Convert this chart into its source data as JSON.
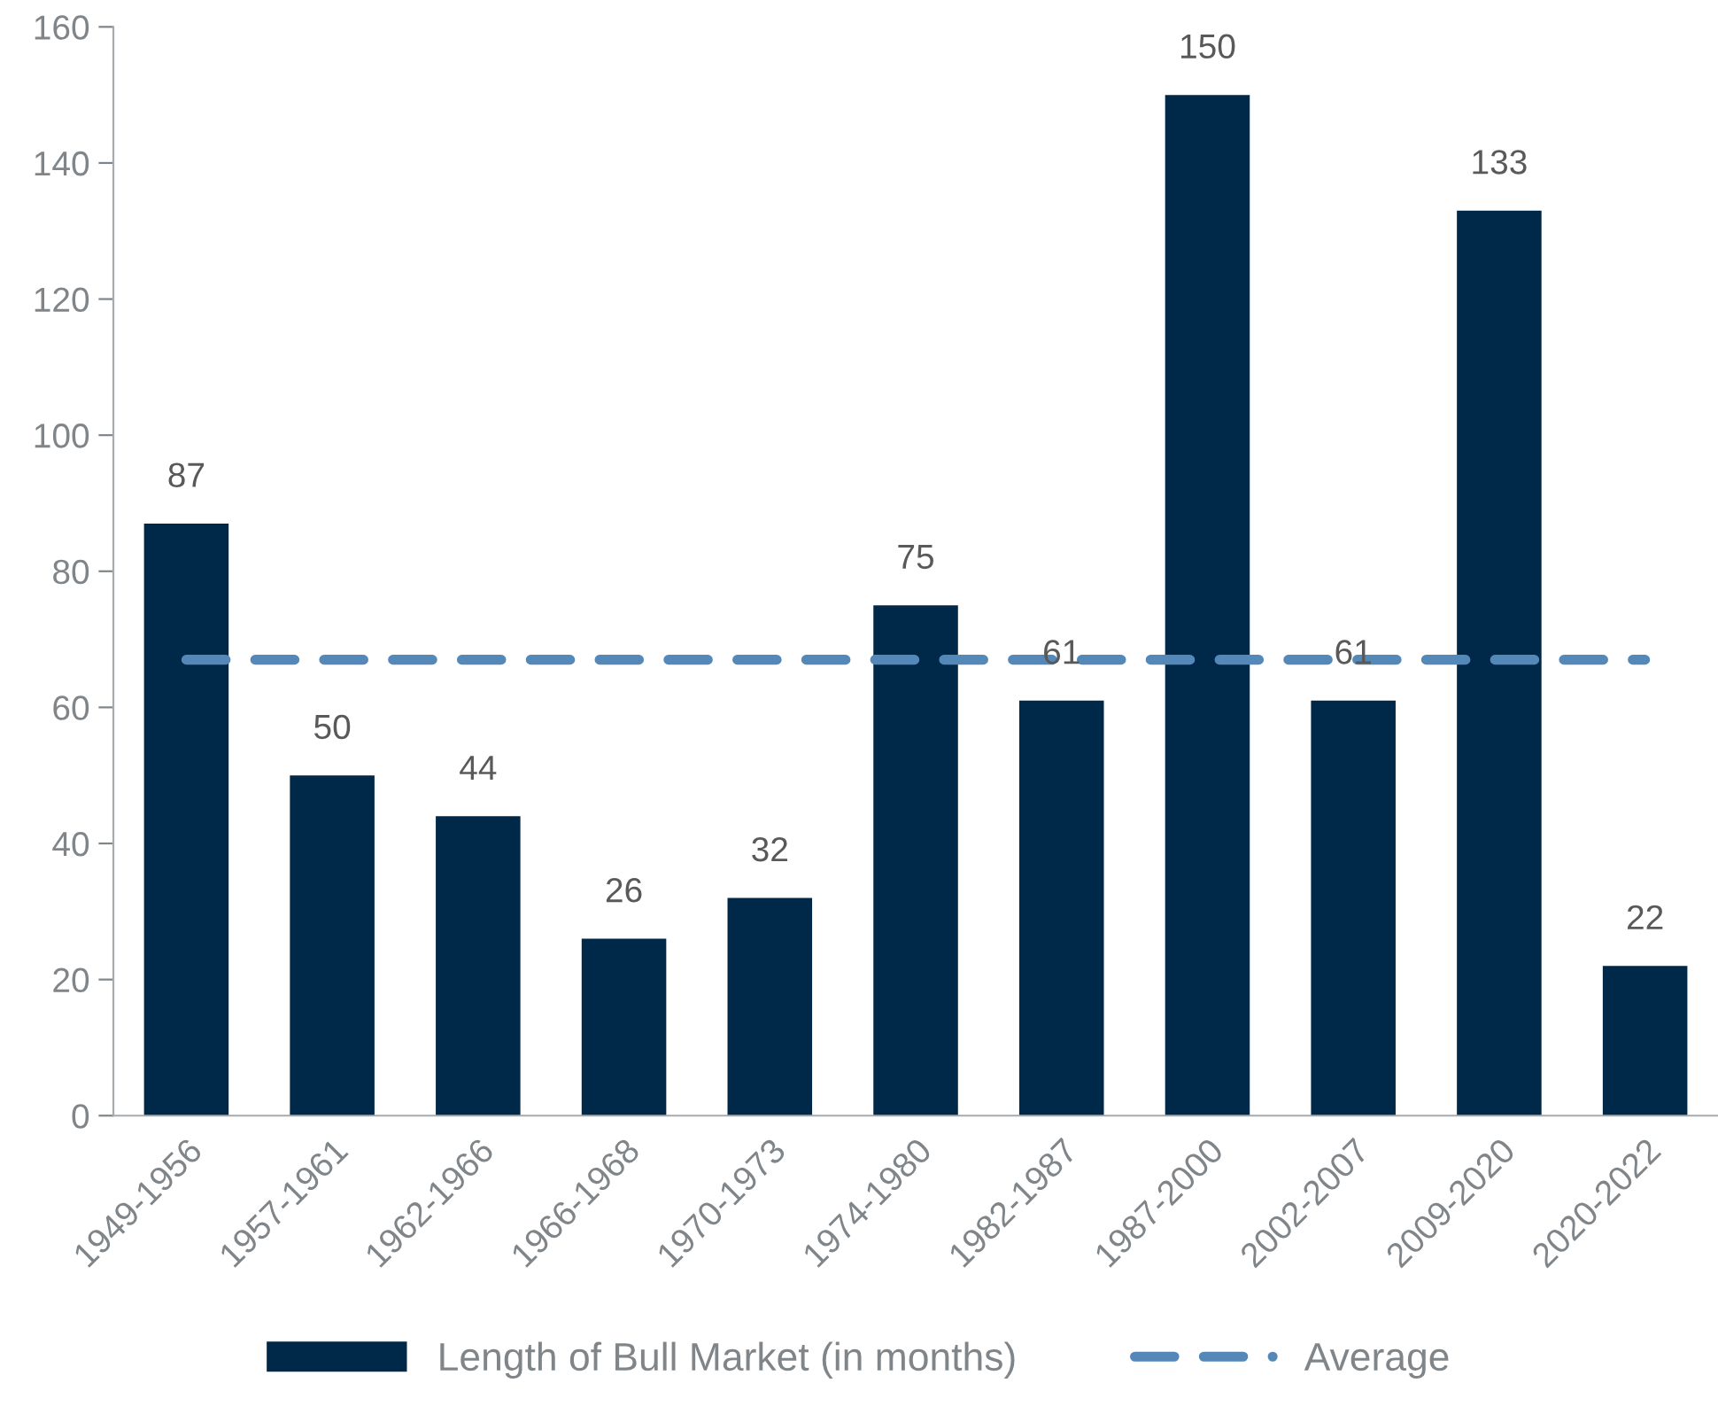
{
  "chart_data": {
    "type": "bar",
    "categories": [
      "1949-1956",
      "1957-1961",
      "1962-1966",
      "1966-1968",
      "1970-1973",
      "1974-1980",
      "1982-1987",
      "1987-2000",
      "2002-2007",
      "2009-2020",
      "2020-2022"
    ],
    "series": [
      {
        "name": "Length of Bull Market (in months)",
        "color": "#002849",
        "values": [
          87,
          50,
          44,
          26,
          32,
          75,
          61,
          150,
          61,
          133,
          22
        ],
        "data_labels": true
      },
      {
        "name": "Average",
        "type": "line",
        "line_style": "dashed",
        "color": "#5388b8",
        "values": [
          67,
          67,
          67,
          67,
          67,
          67,
          67,
          67,
          67,
          67,
          67
        ]
      }
    ],
    "ylim": [
      0,
      160
    ],
    "yticks": [
      0,
      20,
      40,
      60,
      80,
      100,
      120,
      140,
      160
    ],
    "grid": false,
    "legend": "bottom"
  }
}
